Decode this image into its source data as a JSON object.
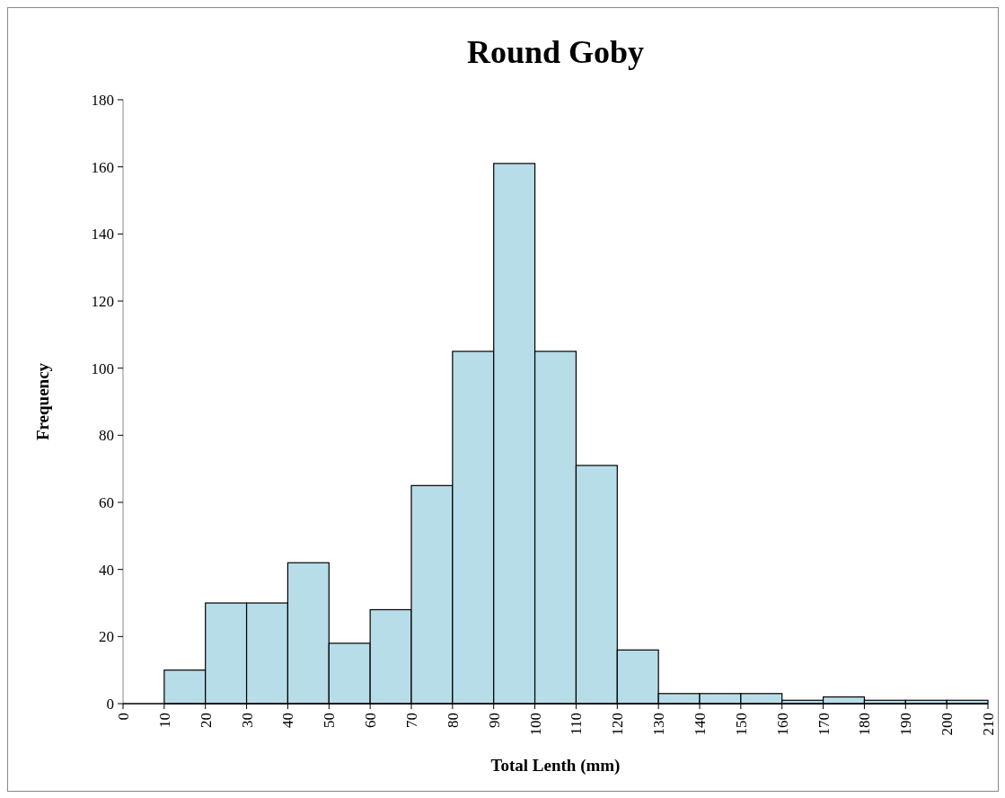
{
  "chart_data": {
    "type": "histogram",
    "title": "Round Goby",
    "xlabel": "Total Lenth (mm)",
    "ylabel": "Frequency",
    "bins": [
      0,
      10,
      20,
      30,
      40,
      50,
      60,
      70,
      80,
      90,
      100,
      110,
      120,
      130,
      140,
      150,
      160,
      170,
      180,
      190,
      200,
      210
    ],
    "values": [
      0,
      10,
      30,
      30,
      42,
      18,
      28,
      65,
      105,
      161,
      105,
      71,
      16,
      3,
      3,
      3,
      1,
      2,
      1,
      1,
      1
    ],
    "color": "#b7dde8",
    "xlim": [
      0,
      210
    ],
    "xticks": [
      0,
      10,
      20,
      30,
      40,
      50,
      60,
      70,
      80,
      90,
      100,
      110,
      120,
      130,
      140,
      150,
      160,
      170,
      180,
      190,
      200,
      210
    ],
    "ylim": [
      0,
      180
    ],
    "yticks": [
      0,
      20,
      40,
      60,
      80,
      100,
      120,
      140,
      160,
      180
    ],
    "grid": false
  }
}
